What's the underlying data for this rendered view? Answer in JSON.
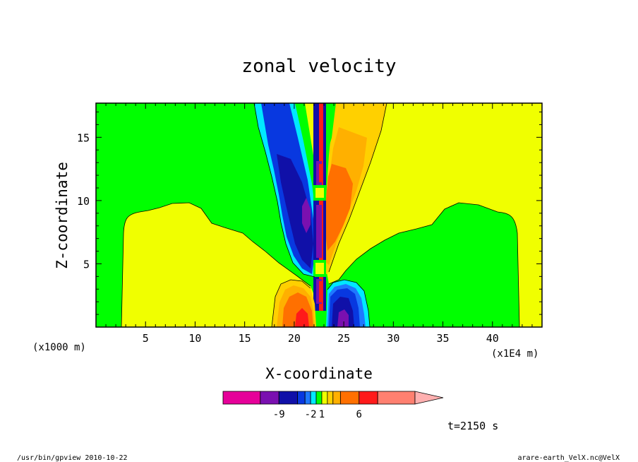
{
  "chart_data": {
    "type": "heatmap",
    "title": "zonal velocity",
    "xlabel": "X-coordinate",
    "ylabel": "Z-coordinate",
    "x_unit_left": "(x1000 m)",
    "x_unit_right": "(x1E4 m)",
    "xlim": [
      0,
      45
    ],
    "ylim": [
      0,
      17.7
    ],
    "x_ticks": [
      "5",
      "10",
      "15",
      "20",
      "25",
      "30",
      "35",
      "40"
    ],
    "x_tick_values": [
      5,
      10,
      15,
      20,
      25,
      30,
      35,
      40
    ],
    "y_ticks": [
      "5",
      "10",
      "15"
    ],
    "y_tick_values": [
      5,
      10,
      15
    ],
    "time_label": "t=2150 s",
    "colorbar": {
      "colors": [
        "#e60099",
        "#7a10b0",
        "#1010a8",
        "#0838e0",
        "#1e78ff",
        "#00e8ff",
        "#00ff00",
        "#f0ff00",
        "#ffd000",
        "#ffb000",
        "#ff7000",
        "#ff1a1a",
        "#ff8070",
        "#ffb0b0"
      ],
      "labels": [
        "-9",
        "-2",
        "1",
        "6"
      ],
      "label_values": [
        -9,
        -2,
        1,
        6
      ]
    }
  },
  "footer": {
    "left": "/usr/bin/gpview  2010-10-22",
    "right": "arare-earth_VelX.nc@VelX"
  }
}
